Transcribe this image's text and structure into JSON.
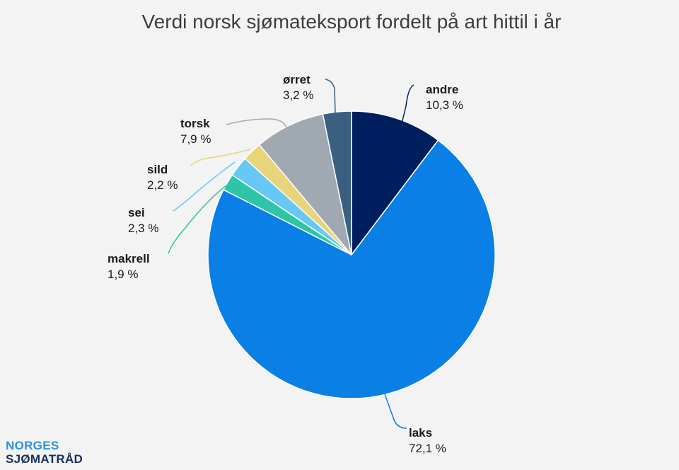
{
  "title": "Verdi norsk sjømateksport fordelt på art hittil i år",
  "logo": {
    "line1": "NORGES",
    "line2": "SJØMATRÅD"
  },
  "chart_data": {
    "type": "pie",
    "title": "Verdi norsk sjømateksport fordelt på art hittil i år",
    "unit": "%",
    "slices": [
      {
        "name": "andre",
        "label": "10,3 %",
        "value": 10.3,
        "color": "#001f5e"
      },
      {
        "name": "laks",
        "label": "72,1 %",
        "value": 72.1,
        "color": "#0a7fe6"
      },
      {
        "name": "makrell",
        "label": "1,9 %",
        "value": 1.9,
        "color": "#2ec4a8"
      },
      {
        "name": "sei",
        "label": "2,3 %",
        "value": 2.3,
        "color": "#67c8f5"
      },
      {
        "name": "sild",
        "label": "2,2 %",
        "value": 2.2,
        "color": "#e8d57a"
      },
      {
        "name": "torsk",
        "label": "7,9 %",
        "value": 7.9,
        "color": "#a0a9b2"
      },
      {
        "name": "ørret",
        "label": "3,2 %",
        "value": 3.2,
        "color": "#3a5f80"
      }
    ]
  }
}
